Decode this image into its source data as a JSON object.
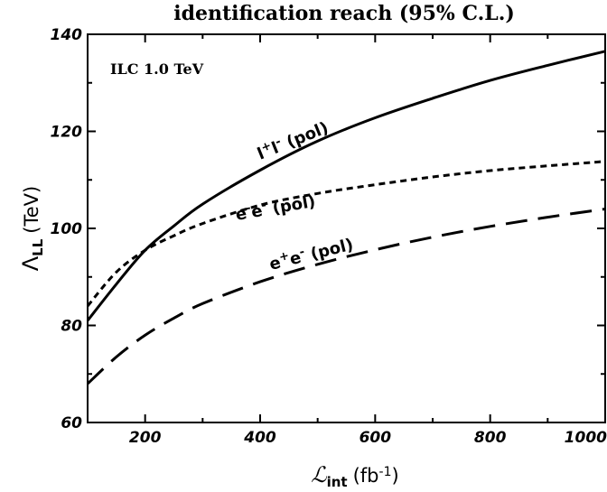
{
  "chart_data": {
    "type": "line",
    "title": "identification reach (95% C.L.)",
    "annotation": "ILC 1.0 TeV",
    "xlabel": {
      "symbol": "ℒ",
      "sub": "int",
      "unit_open": "(fb",
      "unit_sup": "-1",
      "unit_close": ")"
    },
    "ylabel": {
      "symbol": "Λ",
      "sub": "LL",
      "unit": "(TeV)"
    },
    "xlim": [
      100,
      1000
    ],
    "ylim": [
      60,
      140
    ],
    "xticks": [
      200,
      400,
      600,
      800,
      1000
    ],
    "yticks": [
      60,
      80,
      100,
      120,
      140
    ],
    "grid": false,
    "series": [
      {
        "name": "l+l- (pol)",
        "label_parts": [
          "l",
          "+",
          "l",
          "-",
          " (pol)"
        ],
        "style": "solid",
        "x": [
          100,
          150,
          200,
          250,
          300,
          400,
          500,
          600,
          700,
          800,
          900,
          1000
        ],
        "y": [
          81,
          88.5,
          95.5,
          100.5,
          105,
          112,
          118,
          122.8,
          126.8,
          130.5,
          133.6,
          136.5
        ]
      },
      {
        "name": "e-e- (pol)",
        "label_parts": [
          "e",
          "-",
          "e",
          "-",
          " (pol)"
        ],
        "style": "short-dash",
        "x": [
          100,
          150,
          200,
          250,
          300,
          400,
          500,
          600,
          700,
          800,
          900,
          1000
        ],
        "y": [
          84,
          91,
          95.5,
          98.5,
          101,
          104.8,
          107.2,
          109,
          110.6,
          111.9,
          112.9,
          113.8
        ]
      },
      {
        "name": "e+e- (pol)",
        "label_parts": [
          "e",
          "+",
          "e",
          "-",
          " (pol)"
        ],
        "style": "long-dash",
        "x": [
          100,
          150,
          200,
          250,
          300,
          400,
          500,
          600,
          700,
          800,
          900,
          1000
        ],
        "y": [
          68,
          73.5,
          78,
          81.5,
          84.5,
          89,
          92.6,
          95.6,
          98.2,
          100.4,
          102.3,
          104
        ]
      }
    ]
  }
}
